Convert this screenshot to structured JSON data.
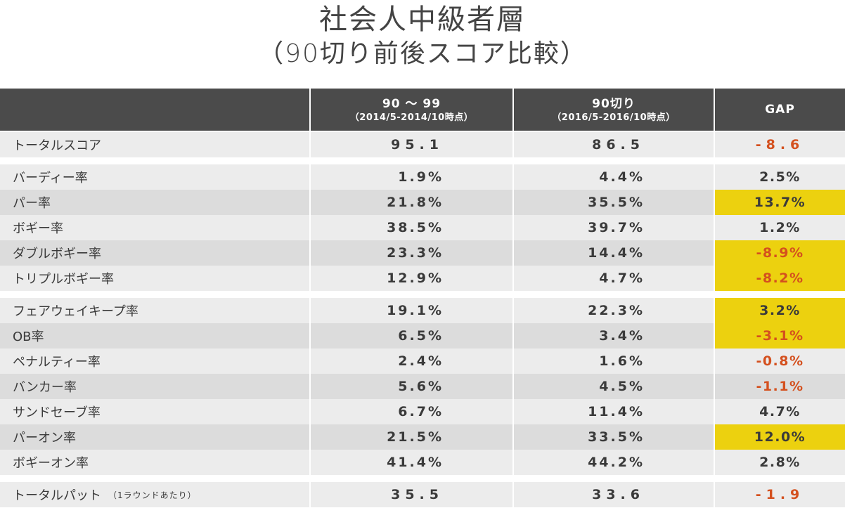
{
  "title": {
    "line1": "社会人中級者層",
    "line2": "（90切り前後スコア比較）"
  },
  "header": {
    "col1_main": "90 〜 99",
    "col1_sub": "（2014/5-2014/10時点）",
    "col2_main": "90切り",
    "col2_sub": "（2016/5-2016/10時点）",
    "col3_main": "GAP"
  },
  "groups": [
    {
      "rows": [
        {
          "label": "トータルスコア",
          "c1": "95.1",
          "c2": "86.5",
          "gap": "-8.6",
          "negative": true,
          "highlight": false,
          "wide": true
        }
      ]
    },
    {
      "rows": [
        {
          "label": "バーディー率",
          "c1": "1.9%",
          "c2": "4.4%",
          "gap": "2.5%",
          "negative": false,
          "highlight": false
        },
        {
          "label": "パー率",
          "c1": "21.8%",
          "c2": "35.5%",
          "gap": "13.7%",
          "negative": false,
          "highlight": true
        },
        {
          "label": "ボギー率",
          "c1": "38.5%",
          "c2": "39.7%",
          "gap": "1.2%",
          "negative": false,
          "highlight": false
        },
        {
          "label": "ダブルボギー率",
          "c1": "23.3%",
          "c2": "14.4%",
          "gap": "-8.9%",
          "negative": true,
          "highlight": true
        },
        {
          "label": "トリプルボギー率",
          "c1": "12.9%",
          "c2": "4.7%",
          "gap": "-8.2%",
          "negative": true,
          "highlight": true
        }
      ]
    },
    {
      "rows": [
        {
          "label": "フェアウェイキープ率",
          "c1": "19.1%",
          "c2": "22.3%",
          "gap": "3.2%",
          "negative": false,
          "highlight": true
        },
        {
          "label": "OB率",
          "c1": "6.5%",
          "c2": "3.4%",
          "gap": "-3.1%",
          "negative": true,
          "highlight": true
        },
        {
          "label": "ペナルティー率",
          "c1": "2.4%",
          "c2": "1.6%",
          "gap": "-0.8%",
          "negative": true,
          "highlight": false
        },
        {
          "label": "バンカー率",
          "c1": "5.6%",
          "c2": "4.5%",
          "gap": "-1.1%",
          "negative": true,
          "highlight": false
        },
        {
          "label": "サンドセーブ率",
          "c1": "6.7%",
          "c2": "11.4%",
          "gap": "4.7%",
          "negative": false,
          "highlight": false
        },
        {
          "label": "パーオン率",
          "c1": "21.5%",
          "c2": "33.5%",
          "gap": "12.0%",
          "negative": false,
          "highlight": true
        },
        {
          "label": "ボギーオン率",
          "c1": "41.4%",
          "c2": "44.2%",
          "gap": "2.8%",
          "negative": false,
          "highlight": false
        }
      ]
    },
    {
      "rows": [
        {
          "label": "トータルパット",
          "note": "（1ラウンドあたり）",
          "c1": "35.5",
          "c2": "33.6",
          "gap": "-1.9",
          "negative": true,
          "highlight": false,
          "wide": true
        }
      ]
    }
  ],
  "colors": {
    "header_bg": "#4b4b4b",
    "row_light": "#ececec",
    "row_dark": "#dcdcdc",
    "negative_text": "#d4501e",
    "highlight_bg": "#ecd10f"
  }
}
